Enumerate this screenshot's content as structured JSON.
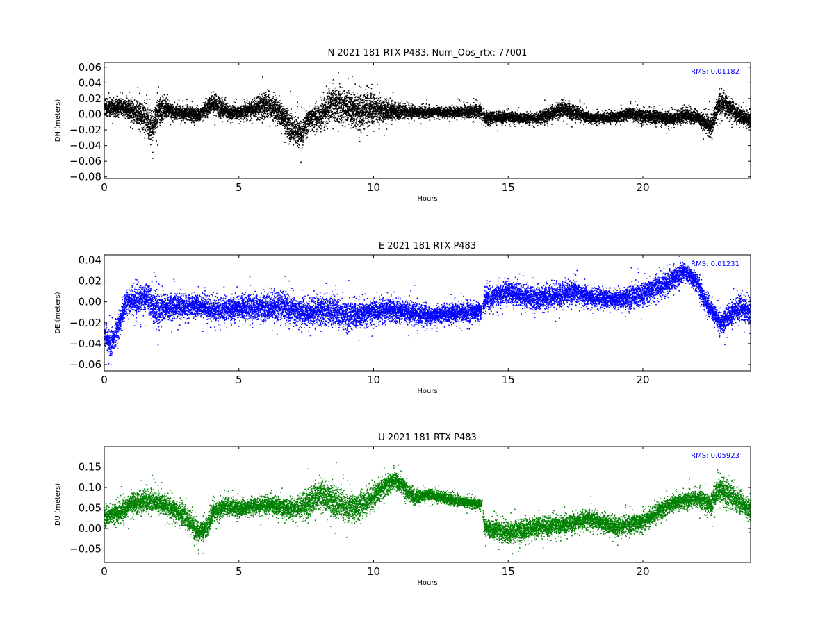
{
  "figure": {
    "background": "#ffffff"
  },
  "chart_data": [
    {
      "type": "scatter",
      "title": "N 2021 181 RTX  P483, Num_Obs_rtx: 77001",
      "xlabel": "Hours",
      "ylabel": "DN (meters)",
      "xlim": [
        0,
        24
      ],
      "ylim": [
        -0.082,
        0.066
      ],
      "xticks": [
        0,
        5,
        10,
        15,
        20
      ],
      "xtick_labels": [
        "0",
        "5",
        "10",
        "15",
        "20"
      ],
      "yticks": [
        -0.08,
        -0.06,
        -0.04,
        -0.02,
        0.0,
        0.02,
        0.04,
        0.06
      ],
      "ytick_labels": [
        "−0.08",
        "−0.06",
        "−0.04",
        "−0.02",
        "0.00",
        "0.02",
        "0.04",
        "0.06"
      ],
      "color": "#000000",
      "annotation": "RMS:  0.01182",
      "annotation_color": "#0000ff",
      "grid": false,
      "gap_hours": [
        14.0,
        14.05
      ],
      "series": [
        {
          "x": [
            0,
            0.5,
            1.0,
            1.5,
            1.8,
            2.0,
            2.3,
            2.6,
            3.0,
            3.5,
            4.0,
            4.3,
            4.6,
            5.0,
            5.5,
            6.0,
            6.5,
            7.0,
            7.3,
            7.6,
            8.0,
            8.5,
            9.0,
            9.5,
            10.0,
            10.5,
            11.0,
            12.0,
            13.0,
            14.0,
            14.1,
            15.0,
            16.0,
            16.5,
            17.0,
            17.5,
            18.0,
            19.0,
            19.5,
            20.0,
            20.5,
            21.0,
            21.5,
            22.0,
            22.5,
            22.8,
            23.0,
            23.5,
            24.0
          ],
          "y": [
            0.008,
            0.01,
            0.006,
            -0.005,
            -0.015,
            0.005,
            0.008,
            0.003,
            0.002,
            0.0,
            0.015,
            0.01,
            0.002,
            0.003,
            0.008,
            0.012,
            0.004,
            -0.02,
            -0.025,
            -0.005,
            0.0,
            0.015,
            0.01,
            0.005,
            0.008,
            0.005,
            0.004,
            0.003,
            0.003,
            0.005,
            -0.004,
            -0.003,
            -0.005,
            0.0,
            0.008,
            0.002,
            -0.004,
            -0.003,
            0.002,
            -0.002,
            -0.003,
            -0.005,
            -0.001,
            -0.003,
            -0.015,
            0.012,
            0.015,
            0.0,
            -0.008
          ],
          "spread": [
            0.01,
            0.01,
            0.012,
            0.018,
            0.02,
            0.02,
            0.01,
            0.008,
            0.008,
            0.008,
            0.01,
            0.012,
            0.008,
            0.008,
            0.01,
            0.015,
            0.016,
            0.016,
            0.015,
            0.012,
            0.016,
            0.02,
            0.02,
            0.02,
            0.018,
            0.012,
            0.008,
            0.006,
            0.006,
            0.008,
            0.008,
            0.006,
            0.006,
            0.008,
            0.01,
            0.008,
            0.006,
            0.006,
            0.008,
            0.008,
            0.008,
            0.008,
            0.008,
            0.008,
            0.012,
            0.014,
            0.014,
            0.01,
            0.008
          ]
        }
      ]
    },
    {
      "type": "scatter",
      "title": "E 2021 181 RTX  P483",
      "xlabel": "Hours",
      "ylabel": "DE (meters)",
      "xlim": [
        0,
        24
      ],
      "ylim": [
        -0.066,
        0.045
      ],
      "xticks": [
        0,
        5,
        10,
        15,
        20
      ],
      "xtick_labels": [
        "0",
        "5",
        "10",
        "15",
        "20"
      ],
      "yticks": [
        -0.06,
        -0.04,
        -0.02,
        0.0,
        0.02,
        0.04
      ],
      "ytick_labels": [
        "−0.06",
        "−0.04",
        "−0.02",
        "0.00",
        "0.02",
        "0.04"
      ],
      "color": "#0000ff",
      "annotation": "RMS:  0.01231",
      "annotation_color": "#0000ff",
      "grid": false,
      "gap_hours": [
        14.0,
        14.05
      ],
      "series": [
        {
          "x": [
            0,
            0.2,
            0.4,
            0.6,
            0.8,
            1.2,
            1.6,
            1.9,
            2.2,
            3.0,
            3.7,
            4.0,
            5.0,
            6.0,
            6.5,
            7.0,
            7.5,
            8.0,
            8.5,
            9.0,
            9.5,
            10.0,
            10.5,
            11.0,
            11.5,
            12.0,
            13.0,
            14.0,
            14.1,
            15.0,
            16.0,
            17.0,
            17.5,
            18.0,
            19.0,
            19.5,
            20.0,
            20.5,
            21.0,
            21.5,
            22.0,
            22.3,
            22.6,
            22.9,
            23.3,
            23.6,
            24.0
          ],
          "y": [
            -0.03,
            -0.04,
            -0.03,
            -0.015,
            0.0,
            0.003,
            0.005,
            -0.008,
            -0.005,
            -0.003,
            -0.003,
            -0.008,
            -0.005,
            -0.005,
            -0.003,
            -0.008,
            -0.01,
            -0.008,
            -0.008,
            -0.012,
            -0.012,
            -0.008,
            -0.007,
            -0.008,
            -0.01,
            -0.013,
            -0.01,
            -0.008,
            0.003,
            0.01,
            0.003,
            0.008,
            0.01,
            0.005,
            0.003,
            0.005,
            0.008,
            0.015,
            0.02,
            0.03,
            0.02,
            0.0,
            -0.01,
            -0.02,
            -0.01,
            -0.005,
            -0.01
          ],
          "spread": [
            0.01,
            0.012,
            0.01,
            0.01,
            0.01,
            0.012,
            0.012,
            0.018,
            0.012,
            0.01,
            0.01,
            0.01,
            0.01,
            0.012,
            0.012,
            0.012,
            0.012,
            0.012,
            0.014,
            0.012,
            0.01,
            0.01,
            0.01,
            0.01,
            0.01,
            0.008,
            0.008,
            0.008,
            0.01,
            0.01,
            0.01,
            0.01,
            0.01,
            0.008,
            0.008,
            0.01,
            0.01,
            0.01,
            0.01,
            0.008,
            0.008,
            0.008,
            0.008,
            0.01,
            0.01,
            0.01,
            0.01
          ]
        }
      ]
    },
    {
      "type": "scatter",
      "title": "U 2021 181 RTX  P483",
      "xlabel": "Hours",
      "ylabel": "DU (meters)",
      "xlim": [
        0,
        24
      ],
      "ylim": [
        -0.083,
        0.2
      ],
      "xticks": [
        0,
        5,
        10,
        15,
        20
      ],
      "xtick_labels": [
        "0",
        "5",
        "10",
        "15",
        "20"
      ],
      "yticks": [
        -0.05,
        0.0,
        0.05,
        0.1,
        0.15
      ],
      "ytick_labels": [
        "−0.05",
        "0.00",
        "0.05",
        "0.10",
        "0.15"
      ],
      "color": "#008000",
      "annotation": "RMS:  0.05923",
      "annotation_color": "#0000ff",
      "grid": false,
      "gap_hours": [
        14.0,
        14.05
      ],
      "series": [
        {
          "x": [
            0,
            0.5,
            1.0,
            1.5,
            2.0,
            2.5,
            3.0,
            3.5,
            3.8,
            4.0,
            4.5,
            5.0,
            5.5,
            6.0,
            7.0,
            7.5,
            8.0,
            8.5,
            9.0,
            9.5,
            10.0,
            10.5,
            10.8,
            11.0,
            11.5,
            12.0,
            13.0,
            14.0,
            14.1,
            15.0,
            16.0,
            17.0,
            18.0,
            19.0,
            19.5,
            20.0,
            20.5,
            21.0,
            21.5,
            22.0,
            22.5,
            22.8,
            23.0,
            23.5,
            24.0
          ],
          "y": [
            0.03,
            0.04,
            0.06,
            0.07,
            0.065,
            0.05,
            0.03,
            -0.01,
            0.005,
            0.04,
            0.055,
            0.05,
            0.055,
            0.06,
            0.05,
            0.06,
            0.085,
            0.07,
            0.05,
            0.06,
            0.08,
            0.11,
            0.12,
            0.11,
            0.075,
            0.085,
            0.07,
            0.06,
            0.005,
            -0.01,
            0.005,
            0.01,
            0.025,
            0.005,
            0.01,
            0.02,
            0.04,
            0.06,
            0.07,
            0.075,
            0.06,
            0.1,
            0.09,
            0.07,
            0.045
          ],
          "spread": [
            0.02,
            0.022,
            0.025,
            0.025,
            0.022,
            0.022,
            0.025,
            0.025,
            0.025,
            0.022,
            0.02,
            0.018,
            0.018,
            0.02,
            0.022,
            0.03,
            0.035,
            0.035,
            0.03,
            0.028,
            0.025,
            0.022,
            0.02,
            0.02,
            0.015,
            0.012,
            0.012,
            0.012,
            0.02,
            0.025,
            0.022,
            0.02,
            0.02,
            0.02,
            0.02,
            0.02,
            0.02,
            0.018,
            0.018,
            0.018,
            0.025,
            0.03,
            0.03,
            0.025,
            0.025
          ]
        }
      ]
    }
  ]
}
